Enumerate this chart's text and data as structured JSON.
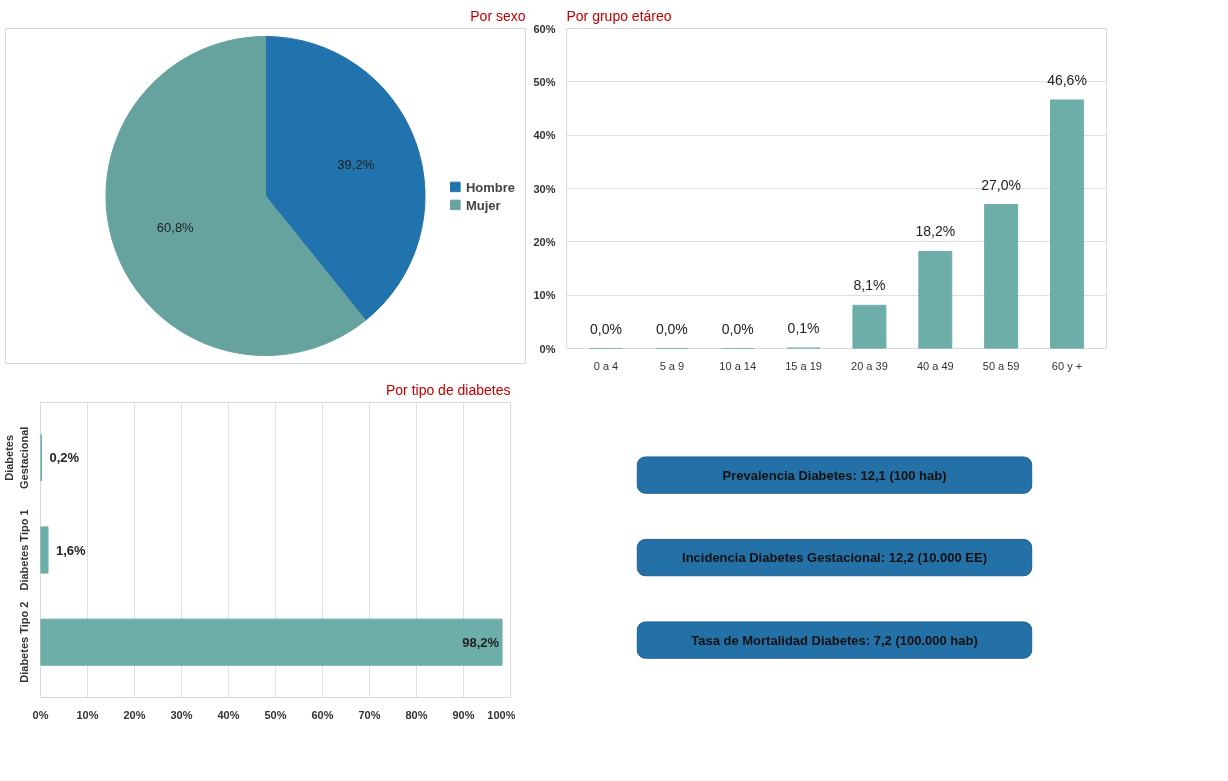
{
  "chart_data": [
    {
      "type": "pie",
      "title": "Por sexo",
      "categories": [
        "Hombre",
        "Mujer"
      ],
      "values": [
        39.2,
        60.8
      ],
      "colors": [
        "#2173ae",
        "#66a39e"
      ],
      "value_labels": [
        "39,2%",
        "60,8%"
      ],
      "legend": "right"
    },
    {
      "type": "bar",
      "title": "Por grupo etáreo",
      "categories": [
        "0 a 4",
        "5 a 9",
        "10 a 14",
        "15 a 19",
        "20 a 39",
        "40 a 49",
        "50 a 59",
        "60 y +"
      ],
      "values": [
        0.0,
        0.0,
        0.0,
        0.1,
        8.1,
        18.2,
        27.0,
        46.6
      ],
      "color": "#6daea8",
      "value_labels": [
        "0,0%",
        "0,0%",
        "0,0%",
        "0,1%",
        "8,1%",
        "18,2%",
        "27,0%",
        "46,6%"
      ],
      "ylim": [
        0,
        60
      ],
      "yticks": [
        {
          "value": 0,
          "label": "0%"
        },
        {
          "value": 10,
          "label": "10%"
        },
        {
          "value": 20,
          "label": "20%"
        },
        {
          "value": 30,
          "label": "30%"
        },
        {
          "value": 40,
          "label": "40%"
        },
        {
          "value": 50,
          "label": "50%"
        },
        {
          "value": 60,
          "label": "60%"
        }
      ],
      "grid": "y"
    },
    {
      "type": "bar",
      "orientation": "horizontal",
      "title": "Por tipo de diabetes",
      "categories": [
        "Diabetes Gestacional",
        "Diabetes Tipo 1",
        "Diabetes Tipo 2"
      ],
      "values": [
        0.2,
        1.6,
        98.2
      ],
      "color": "#6daea8",
      "value_labels": [
        "0,2%",
        "1,6%",
        "98,2%"
      ],
      "xlim": [
        0,
        100
      ],
      "xticks": [
        {
          "value": 0,
          "label": "0%"
        },
        {
          "value": 10,
          "label": "10%"
        },
        {
          "value": 20,
          "label": "20%"
        },
        {
          "value": 30,
          "label": "30%"
        },
        {
          "value": 40,
          "label": "40%"
        },
        {
          "value": 50,
          "label": "50%"
        },
        {
          "value": 60,
          "label": "60%"
        },
        {
          "value": 70,
          "label": "70%"
        },
        {
          "value": 80,
          "label": "80%"
        },
        {
          "value": 90,
          "label": "90%"
        },
        {
          "value": 100,
          "label": "100%"
        }
      ],
      "grid": "x"
    },
    {
      "type": "other",
      "color": "#2471a8",
      "annotations": [
        "Prevalencia Diabetes: 12,1 (100 hab)",
        "Incidencia Diabetes Gestacional: 12,2 (10.000 EE)",
        "Tasa de Mortalidad Diabetes: 7,2 (100.000 hab)"
      ]
    }
  ]
}
